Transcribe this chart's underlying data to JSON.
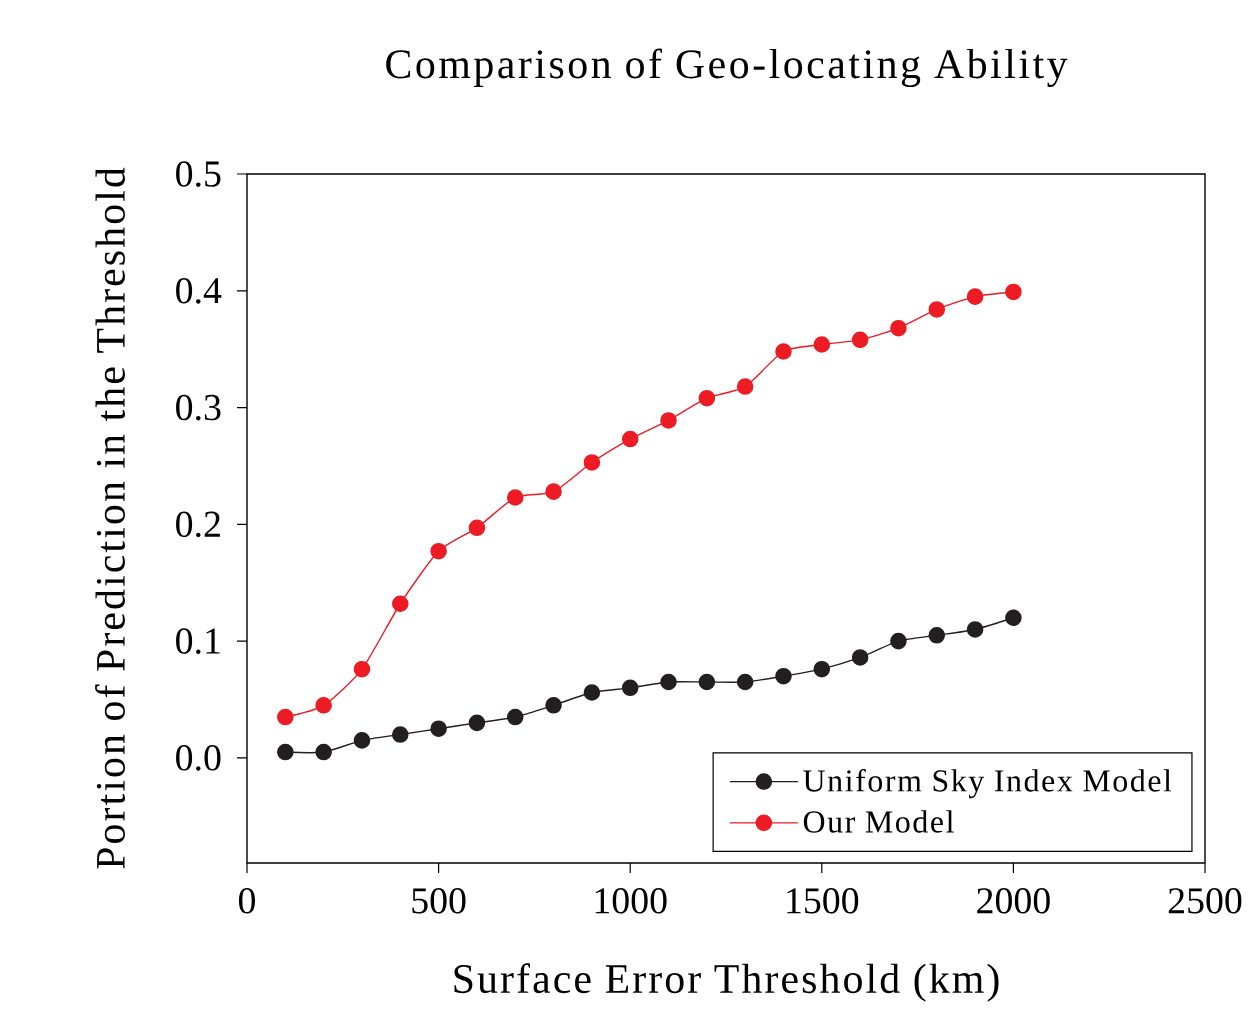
{
  "chart_data": {
    "type": "line",
    "title": "Comparison of Geo-locating Ability",
    "xlabel": "Surface Error Threshold (km)",
    "ylabel": "Portion of Prediction in the Threshold",
    "x": [
      100,
      200,
      300,
      400,
      500,
      600,
      700,
      800,
      900,
      1000,
      1100,
      1200,
      1300,
      1400,
      1500,
      1600,
      1700,
      1800,
      1900,
      2000
    ],
    "series": [
      {
        "name": "Uniform Sky Index Model",
        "color": "#231f20",
        "values": [
          0.005,
          0.005,
          0.015,
          0.02,
          0.025,
          0.03,
          0.035,
          0.045,
          0.056,
          0.06,
          0.065,
          0.065,
          0.065,
          0.07,
          0.076,
          0.086,
          0.1,
          0.105,
          0.11,
          0.12
        ]
      },
      {
        "name": "Our Model",
        "color": "#ed1c24",
        "values": [
          0.035,
          0.045,
          0.076,
          0.132,
          0.177,
          0.197,
          0.223,
          0.228,
          0.253,
          0.273,
          0.289,
          0.308,
          0.318,
          0.348,
          0.354,
          0.358,
          0.368,
          0.384,
          0.395,
          0.399
        ]
      }
    ],
    "xlim": [
      0,
      2500
    ],
    "xticks": [
      0,
      500,
      1000,
      1500,
      2000,
      2500
    ],
    "ylim": [
      -0.09,
      0.5
    ],
    "yticks": [
      {
        "value": 0,
        "label": "0.0"
      },
      0.1,
      0.2,
      0.3,
      0.4,
      0.5
    ],
    "grid": false,
    "legend": "bottom right",
    "marker": "circle",
    "line_style": "solid"
  }
}
